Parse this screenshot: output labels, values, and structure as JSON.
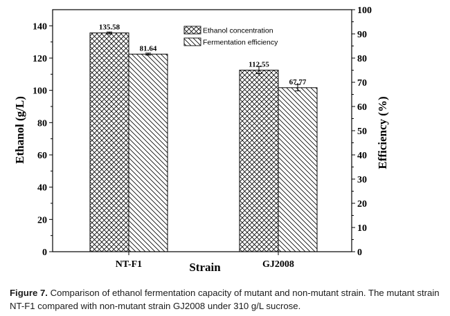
{
  "chart_data": {
    "type": "bar",
    "categories": [
      "NT-F1",
      "GJ2008"
    ],
    "series": [
      {
        "name": "Ethanol concentration",
        "axis": "left",
        "values": [
          135.58,
          112.55
        ],
        "errors": [
          0.6,
          2.2
        ],
        "hatch": "crosshatch"
      },
      {
        "name": "Fermentation efficiency",
        "axis": "right",
        "values": [
          81.64,
          67.77
        ],
        "errors": [
          0.4,
          1.3
        ],
        "hatch": "diagonal"
      }
    ],
    "value_labels": [
      "135.58",
      "112.55",
      "81.64",
      "67.77"
    ],
    "xlabel": "Strain",
    "ylabel": "Ethanol (g/L)",
    "y2label": "Efficiency (%)",
    "ylim": [
      0,
      150
    ],
    "y2lim": [
      0,
      100
    ],
    "yticks": [
      "0",
      "20",
      "40",
      "60",
      "80",
      "100",
      "120",
      "140"
    ],
    "y2ticks": [
      "0",
      "10",
      "20",
      "30",
      "40",
      "50",
      "60",
      "70",
      "80",
      "90",
      "100"
    ],
    "legend_position": "top-center",
    "grid": false
  },
  "caption": {
    "label": "Figure 7.",
    "text": "Comparison of ethanol fermentation capacity of mutant and non-mutant strain. The mutant strain NT-F1 compared with non-mutant strain GJ2008 under 310 g/L sucrose."
  }
}
